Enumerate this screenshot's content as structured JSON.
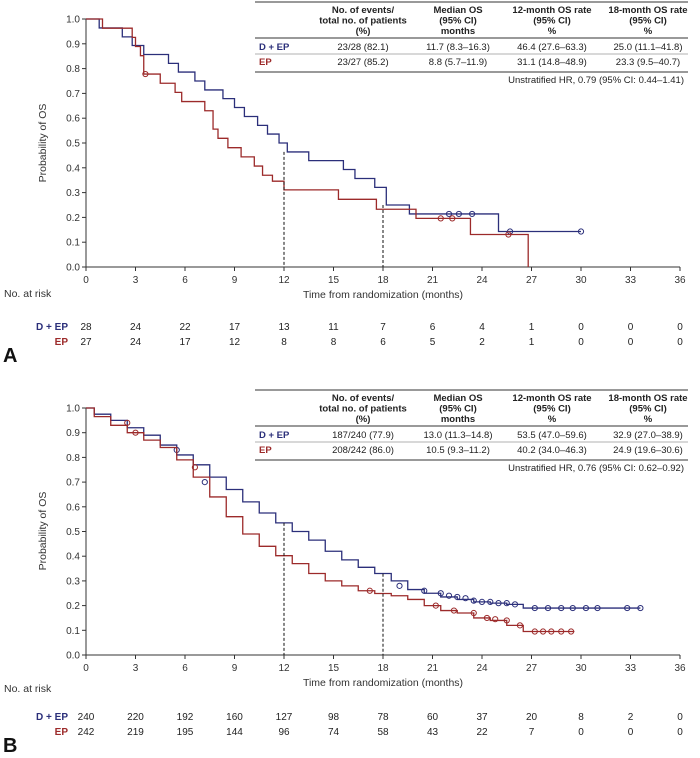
{
  "colors": {
    "dep": "#2b2f7a",
    "ep": "#9c2a2a",
    "axis": "#333333"
  },
  "chart_data": [
    {
      "panel_label": "A",
      "type": "line",
      "subtype": "kaplan-meier",
      "xlabel": "Time from randomization (months)",
      "ylabel": "Probability of OS",
      "xlim": [
        0,
        36
      ],
      "ylim": [
        0,
        1
      ],
      "x_ticks": [
        "0",
        "3",
        "6",
        "9",
        "12",
        "15",
        "18",
        "21",
        "24",
        "27",
        "30",
        "33",
        "36"
      ],
      "y_ticks": [
        "0.0",
        "0.1",
        "0.2",
        "0.3",
        "0.4",
        "0.5",
        "0.6",
        "0.7",
        "0.8",
        "0.9",
        "1.0"
      ],
      "reference_lines_x": [
        12,
        18
      ],
      "table": {
        "headers": [
          [
            "",
            ""
          ],
          [
            "No. of events/",
            "total no. of patients",
            "(%)"
          ],
          [
            "Median OS",
            "(95% CI)",
            "months"
          ],
          [
            "12-month OS rate",
            "(95% CI)",
            "%"
          ],
          [
            "18-month OS rate",
            "(95% CI)",
            "%"
          ]
        ],
        "rows": [
          {
            "group": "D + EP",
            "events": "23/28 (82.1)",
            "median": "11.7 (8.3–16.3)",
            "os12": "46.4 (27.6–63.3)",
            "os18": "25.0 (11.1–41.8)"
          },
          {
            "group": "EP",
            "events": "23/27 (85.2)",
            "median": "8.8 (5.7–11.9)",
            "os12": "31.1 (14.8–48.9)",
            "os18": "23.3 (9.5–40.7)"
          }
        ],
        "hr": "Unstratified HR, 0.79 (95% CI: 0.44–1.41)"
      },
      "series": [
        {
          "name": "D + EP",
          "steps": [
            [
              0,
              1.0
            ],
            [
              0.8,
              0.964
            ],
            [
              2.2,
              0.928
            ],
            [
              2.8,
              0.893
            ],
            [
              3.5,
              0.857
            ],
            [
              5.0,
              0.821
            ],
            [
              5.6,
              0.786
            ],
            [
              6.6,
              0.75
            ],
            [
              7.2,
              0.714
            ],
            [
              8.3,
              0.679
            ],
            [
              9.0,
              0.643
            ],
            [
              9.6,
              0.607
            ],
            [
              10.4,
              0.571
            ],
            [
              11.0,
              0.536
            ],
            [
              11.7,
              0.5
            ],
            [
              12.2,
              0.464
            ],
            [
              13.5,
              0.429
            ],
            [
              15.6,
              0.393
            ],
            [
              16.3,
              0.357
            ],
            [
              17.5,
              0.321
            ],
            [
              18.2,
              0.25
            ],
            [
              19.6,
              0.214
            ],
            [
              25.0,
              0.143
            ],
            [
              30.0,
              0.143
            ]
          ],
          "censored": [
            [
              22.0,
              0.214
            ],
            [
              22.6,
              0.214
            ],
            [
              23.4,
              0.214
            ],
            [
              25.7,
              0.143
            ],
            [
              30.0,
              0.143
            ]
          ]
        },
        {
          "name": "EP",
          "steps": [
            [
              0,
              1.0
            ],
            [
              1.0,
              0.963
            ],
            [
              2.8,
              0.926
            ],
            [
              3.0,
              0.889
            ],
            [
              3.3,
              0.852
            ],
            [
              3.5,
              0.778
            ],
            [
              4.5,
              0.741
            ],
            [
              5.4,
              0.704
            ],
            [
              5.8,
              0.667
            ],
            [
              7.2,
              0.63
            ],
            [
              7.7,
              0.556
            ],
            [
              8.0,
              0.519
            ],
            [
              8.6,
              0.481
            ],
            [
              9.4,
              0.444
            ],
            [
              10.2,
              0.407
            ],
            [
              10.7,
              0.37
            ],
            [
              11.3,
              0.346
            ],
            [
              12.0,
              0.311
            ],
            [
              15.3,
              0.273
            ],
            [
              17.6,
              0.233
            ],
            [
              20.0,
              0.196
            ],
            [
              22.5,
              0.196
            ],
            [
              23.3,
              0.131
            ],
            [
              26.8,
              0.0
            ]
          ],
          "censored": [
            [
              3.6,
              0.778
            ],
            [
              21.5,
              0.196
            ],
            [
              22.2,
              0.196
            ],
            [
              25.6,
              0.131
            ]
          ]
        }
      ],
      "at_risk": {
        "label": "No. at risk",
        "rows": [
          {
            "name": "D + EP",
            "values": [
              "28",
              "24",
              "22",
              "17",
              "13",
              "11",
              "7",
              "6",
              "4",
              "1",
              "0",
              "0",
              "0"
            ]
          },
          {
            "name": "EP",
            "values": [
              "27",
              "24",
              "17",
              "12",
              "8",
              "8",
              "6",
              "5",
              "2",
              "1",
              "0",
              "0",
              "0"
            ]
          }
        ]
      }
    },
    {
      "panel_label": "B",
      "type": "line",
      "subtype": "kaplan-meier",
      "xlabel": "Time from randomization (months)",
      "ylabel": "Probability of OS",
      "xlim": [
        0,
        36
      ],
      "ylim": [
        0,
        1
      ],
      "x_ticks": [
        "0",
        "3",
        "6",
        "9",
        "12",
        "15",
        "18",
        "21",
        "24",
        "27",
        "30",
        "33",
        "36"
      ],
      "y_ticks": [
        "0.0",
        "0.1",
        "0.2",
        "0.3",
        "0.4",
        "0.5",
        "0.6",
        "0.7",
        "0.8",
        "0.9",
        "1.0"
      ],
      "reference_lines_x": [
        12,
        18
      ],
      "table": {
        "headers": [
          [
            "",
            ""
          ],
          [
            "No. of events/",
            "total no. of patients",
            "(%)"
          ],
          [
            "Median OS",
            "(95% CI)",
            "months"
          ],
          [
            "12-month OS rate",
            "(95% CI)",
            "%"
          ],
          [
            "18-month OS rate",
            "(95% CI)",
            "%"
          ]
        ],
        "rows": [
          {
            "group": "D + EP",
            "events": "187/240 (77.9)",
            "median": "13.0 (11.3–14.8)",
            "os12": "53.5 (47.0–59.6)",
            "os18": "32.9 (27.0–38.9)"
          },
          {
            "group": "EP",
            "events": "208/242 (86.0)",
            "median": "10.5 (9.3–11.2)",
            "os12": "40.2 (34.0–46.3)",
            "os18": "24.9 (19.6–30.6)"
          }
        ],
        "hr": "Unstratified HR, 0.76 (95% CI: 0.62–0.92)"
      },
      "series": [
        {
          "name": "D + EP",
          "points": [
            [
              0,
              1.0
            ],
            [
              1,
              0.975
            ],
            [
              2,
              0.95
            ],
            [
              3,
              0.92
            ],
            [
              4,
              0.89
            ],
            [
              5,
              0.85
            ],
            [
              6,
              0.81
            ],
            [
              7,
              0.77
            ],
            [
              8,
              0.72
            ],
            [
              9,
              0.67
            ],
            [
              10,
              0.62
            ],
            [
              11,
              0.575
            ],
            [
              12,
              0.535
            ],
            [
              13,
              0.5
            ],
            [
              14,
              0.465
            ],
            [
              15,
              0.42
            ],
            [
              16,
              0.385
            ],
            [
              17,
              0.355
            ],
            [
              18,
              0.33
            ],
            [
              19,
              0.3
            ],
            [
              20,
              0.265
            ],
            [
              21,
              0.25
            ],
            [
              22,
              0.235
            ],
            [
              23,
              0.225
            ],
            [
              24,
              0.215
            ],
            [
              25,
              0.21
            ],
            [
              26,
              0.205
            ],
            [
              27,
              0.19
            ],
            [
              30,
              0.19
            ],
            [
              33.6,
              0.19
            ]
          ],
          "censored": [
            [
              5.5,
              0.83
            ],
            [
              7.2,
              0.7
            ],
            [
              19.0,
              0.28
            ],
            [
              20.5,
              0.26
            ],
            [
              21.5,
              0.25
            ],
            [
              22.0,
              0.24
            ],
            [
              22.5,
              0.235
            ],
            [
              23.0,
              0.23
            ],
            [
              23.5,
              0.22
            ],
            [
              24.0,
              0.215
            ],
            [
              24.5,
              0.215
            ],
            [
              25.0,
              0.21
            ],
            [
              25.5,
              0.21
            ],
            [
              26.0,
              0.205
            ],
            [
              27.2,
              0.19
            ],
            [
              28.0,
              0.19
            ],
            [
              28.8,
              0.19
            ],
            [
              29.5,
              0.19
            ],
            [
              30.3,
              0.19
            ],
            [
              31.0,
              0.19
            ],
            [
              32.8,
              0.19
            ],
            [
              33.6,
              0.19
            ]
          ]
        },
        {
          "name": "EP",
          "points": [
            [
              0,
              1.0
            ],
            [
              1,
              0.965
            ],
            [
              2,
              0.93
            ],
            [
              3,
              0.9
            ],
            [
              4,
              0.87
            ],
            [
              5,
              0.84
            ],
            [
              6,
              0.79
            ],
            [
              7,
              0.72
            ],
            [
              8,
              0.64
            ],
            [
              9,
              0.56
            ],
            [
              10,
              0.49
            ],
            [
              11,
              0.44
            ],
            [
              12,
              0.402
            ],
            [
              13,
              0.37
            ],
            [
              14,
              0.33
            ],
            [
              15,
              0.3
            ],
            [
              16,
              0.28
            ],
            [
              17,
              0.26
            ],
            [
              18,
              0.249
            ],
            [
              19,
              0.24
            ],
            [
              20,
              0.225
            ],
            [
              21,
              0.2
            ],
            [
              22,
              0.18
            ],
            [
              23,
              0.17
            ],
            [
              24,
              0.15
            ],
            [
              25,
              0.14
            ],
            [
              26,
              0.12
            ],
            [
              27,
              0.095
            ],
            [
              29.6,
              0.095
            ]
          ],
          "censored": [
            [
              2.5,
              0.94
            ],
            [
              3.0,
              0.9
            ],
            [
              6.6,
              0.76
            ],
            [
              17.2,
              0.26
            ],
            [
              21.2,
              0.2
            ],
            [
              22.3,
              0.18
            ],
            [
              23.5,
              0.17
            ],
            [
              24.3,
              0.15
            ],
            [
              24.8,
              0.145
            ],
            [
              25.5,
              0.14
            ],
            [
              26.3,
              0.12
            ],
            [
              27.2,
              0.095
            ],
            [
              27.7,
              0.095
            ],
            [
              28.2,
              0.095
            ],
            [
              28.8,
              0.095
            ],
            [
              29.4,
              0.095
            ]
          ]
        }
      ],
      "at_risk": {
        "label": "No. at risk",
        "rows": [
          {
            "name": "D + EP",
            "values": [
              "240",
              "220",
              "192",
              "160",
              "127",
              "98",
              "78",
              "60",
              "37",
              "20",
              "8",
              "2",
              "0"
            ]
          },
          {
            "name": "EP",
            "values": [
              "242",
              "219",
              "195",
              "144",
              "96",
              "74",
              "58",
              "43",
              "22",
              "7",
              "0",
              "0",
              "0"
            ]
          }
        ]
      }
    }
  ]
}
